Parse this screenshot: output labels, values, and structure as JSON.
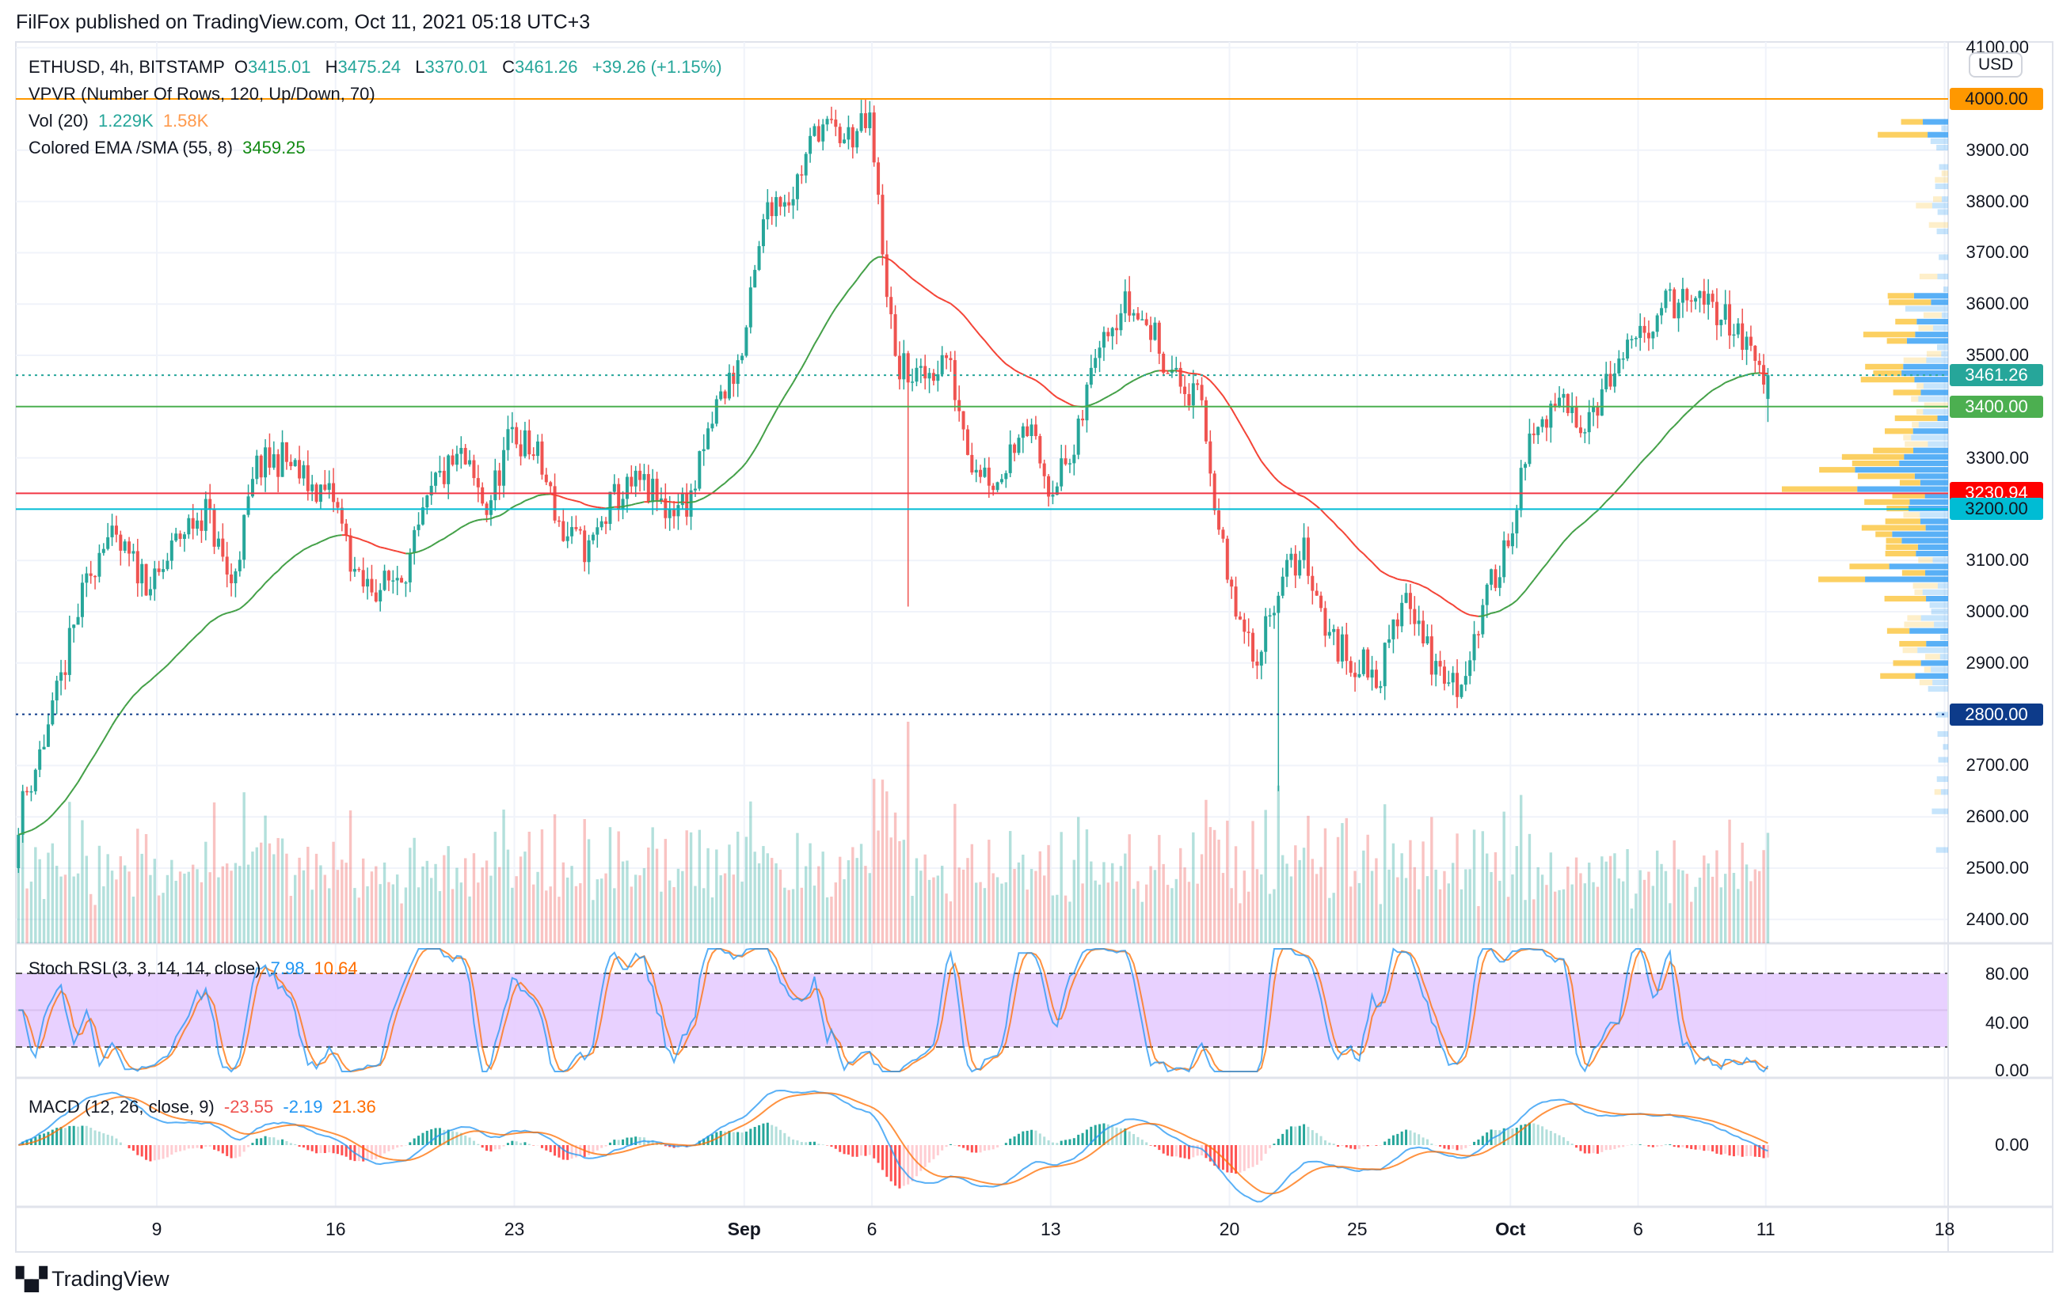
{
  "header": {
    "published": "FilFox published on TradingView.com, Oct 11, 2021 05:18 UTC+3"
  },
  "legend": {
    "symbol": "ETHUSD, 4h, BITSTAMP",
    "o_label": "O",
    "o": "3415.01",
    "h_label": "H",
    "h": "3475.24",
    "l_label": "L",
    "l": "3370.01",
    "c_label": "C",
    "c": "3461.26",
    "change": "+39.26 (+1.15%)",
    "vpvr": "VPVR (Number Of Rows, 120, Up/Down, 70)",
    "vol_label": "Vol (20)",
    "vol_value": "1.229K",
    "vol_ma": "1.58K",
    "ema_label": "Colored EMA /SMA (55, 8)",
    "ema_value": "3459.25"
  },
  "stoch": {
    "label": "Stoch RSI (3, 3, 14, 14, close)",
    "k": "7.98",
    "d": "10.64",
    "axis": [
      "80.00",
      "40.00",
      "0.00"
    ]
  },
  "macd": {
    "label": "MACD (12, 26, close, 9)",
    "hist": "-23.55",
    "macd": "-2.19",
    "signal": "21.36",
    "axis": [
      "0.00"
    ]
  },
  "price_axis": {
    "currency": "USD",
    "ticks": [
      "4100.00",
      "3900.00",
      "3800.00",
      "3700.00",
      "3600.00",
      "3500.00",
      "3300.00",
      "3100.00",
      "3000.00",
      "2900.00",
      "2700.00",
      "2600.00",
      "2500.00",
      "2400.00"
    ],
    "levels": [
      {
        "label": "4000.00",
        "price": 4000,
        "line": "#ff9800",
        "bg": "#ff9800",
        "fg": "#131722",
        "dotted": false
      },
      {
        "label": "3461.26",
        "price": 3461.26,
        "line": "#26a69a",
        "bg": "#26a69a",
        "fg": "#ffffff",
        "dotted": true
      },
      {
        "label": "3400.00",
        "price": 3400,
        "line": "#4caf50",
        "bg": "#4caf50",
        "fg": "#ffffff",
        "dotted": false
      },
      {
        "label": "3230.94",
        "price": 3230.94,
        "line": "#f23645",
        "bg": "#ff0000",
        "fg": "#ffffff",
        "dotted": false
      },
      {
        "label": "3200.00",
        "price": 3200,
        "line": "#00bcd4",
        "bg": "#00bcd4",
        "fg": "#131722",
        "dotted": false
      },
      {
        "label": "2800.00",
        "price": 2800,
        "line": "#0d3b8a",
        "bg": "#0d3b8a",
        "fg": "#ffffff",
        "dotted": true
      }
    ]
  },
  "time_axis": [
    {
      "label": "9",
      "day": 8
    },
    {
      "label": "16",
      "day": 15
    },
    {
      "label": "23",
      "day": 22
    },
    {
      "label": "Sep",
      "day": 31,
      "bold": true
    },
    {
      "label": "6",
      "day": 36
    },
    {
      "label": "13",
      "day": 43
    },
    {
      "label": "20",
      "day": 50
    },
    {
      "label": "25",
      "day": 55
    },
    {
      "label": "Oct",
      "day": 61,
      "bold": true
    },
    {
      "label": "6",
      "day": 66
    },
    {
      "label": "11",
      "day": 71
    },
    {
      "label": "18",
      "day": 78
    }
  ],
  "footer": {
    "brand": "TradingView",
    "logo": "TV"
  },
  "chart_data": {
    "type": "candlestick",
    "symbol": "ETHUSD",
    "interval": "4h",
    "exchange": "BITSTAMP",
    "ylim": [
      2350,
      4120
    ],
    "first_day_offset": 2,
    "daily_close": [
      2500,
      2650,
      2800,
      3000,
      3150,
      3100,
      3050,
      3150,
      3200,
      3050,
      3280,
      3300,
      3250,
      3220,
      3050,
      3050,
      3100,
      3250,
      3300,
      3200,
      3350,
      3300,
      3150,
      3120,
      3220,
      3250,
      3200,
      3220,
      3400,
      3500,
      3800,
      3820,
      3950,
      3920,
      3950,
      3480,
      3450,
      3500,
      3300,
      3250,
      3380,
      3250,
      3300,
      3550,
      3600,
      3550,
      3450,
      3400,
      3050,
      2900,
      3050,
      3120,
      2950,
      2900,
      2880,
      3050,
      2900,
      2850,
      3000,
      3150,
      3350,
      3400,
      3380,
      3450,
      3520,
      3600,
      3600,
      3600,
      3550,
      3461.26
    ],
    "notable_lows": [
      {
        "day": 37.4,
        "low": 3010
      },
      {
        "day": 51.9,
        "low": 2650
      }
    ],
    "last_candle": {
      "open": 3415.01,
      "high": 3475.24,
      "low": 3370.01,
      "close": 3461.26
    },
    "colors": {
      "up": "#26a69a",
      "down": "#ef5350",
      "ema_up": "#43a047",
      "ema_down": "#f44336",
      "k": "#2196f3",
      "d": "#ff6d00",
      "vp_up": "#2196f3",
      "vp_down": "#fbc02d",
      "stoch_band": "#e6ccff"
    }
  }
}
